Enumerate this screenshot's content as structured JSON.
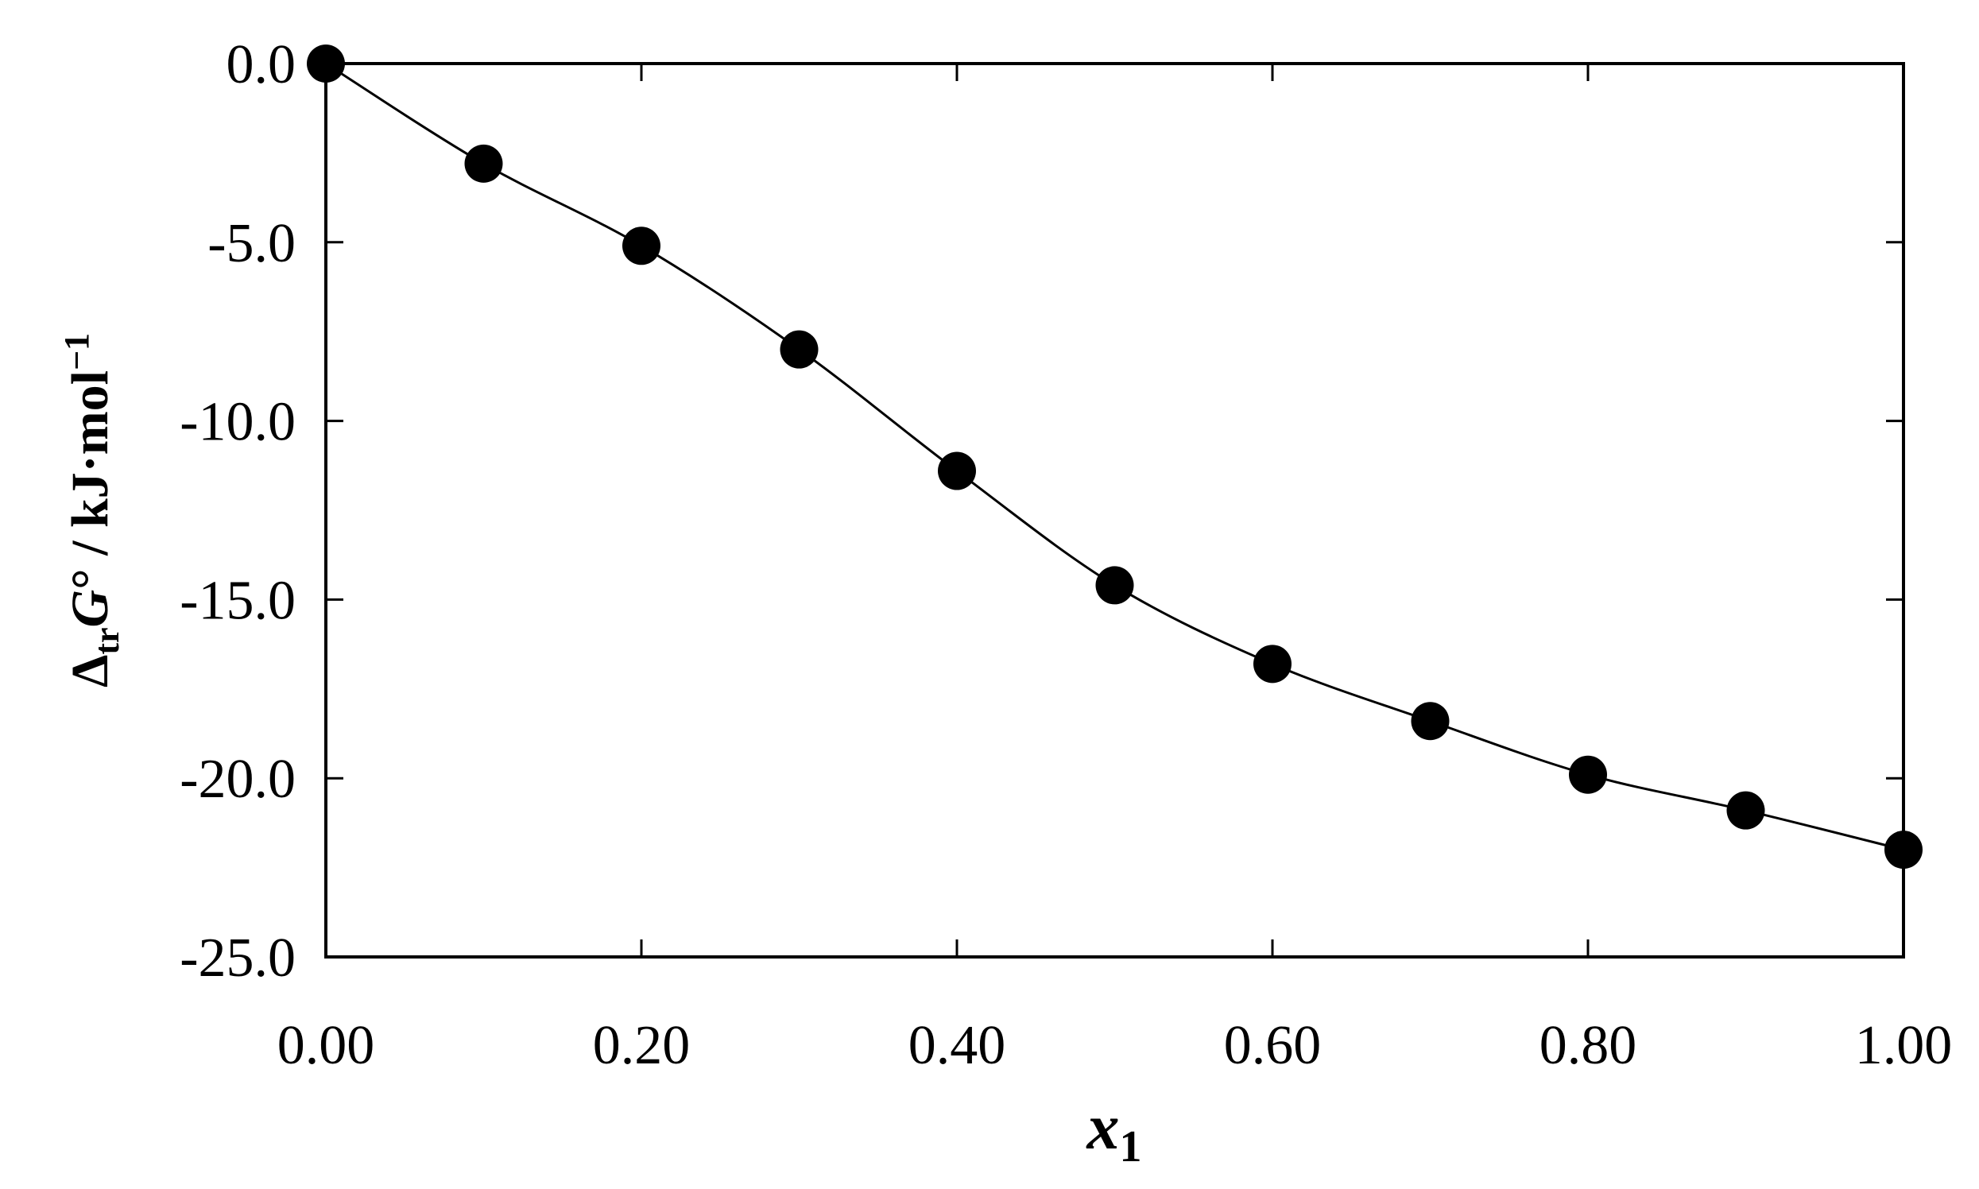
{
  "chart_data": {
    "type": "scatter",
    "title": "",
    "xlabel": {
      "main": "x",
      "sub": "1"
    },
    "ylabel": {
      "delta": "Δ",
      "delta_sub": "tr",
      "symbol": "G",
      "degree": "°",
      "units": " / kJ·mol",
      "exponent": "−1"
    },
    "xlim": [
      0,
      1
    ],
    "ylim": [
      -25,
      0
    ],
    "x_ticks": [
      0,
      0.2,
      0.4,
      0.6,
      0.8,
      1.0
    ],
    "x_tick_labels": [
      "0.00",
      "0.20",
      "0.40",
      "0.60",
      "0.80",
      "1.00"
    ],
    "y_ticks": [
      0,
      -5,
      -10,
      -15,
      -20,
      -25
    ],
    "y_tick_labels": [
      "0.0",
      "-5.0",
      "-10.0",
      "-15.0",
      "-20.0",
      "-25.0"
    ],
    "grid": false,
    "legend": "none",
    "colors": {
      "marker": "#000000",
      "line": "#000000",
      "axis": "#000000"
    },
    "series": [
      {
        "marker": "filled-circle",
        "with_fit_curve": true,
        "x": [
          0.0,
          0.1,
          0.2,
          0.3,
          0.4,
          0.5,
          0.6,
          0.7,
          0.8,
          0.9,
          1.0
        ],
        "y": [
          0.0,
          -2.8,
          -5.1,
          -8.0,
          -11.4,
          -14.6,
          -16.8,
          -18.4,
          -19.9,
          -20.9,
          -22.0
        ]
      }
    ]
  }
}
